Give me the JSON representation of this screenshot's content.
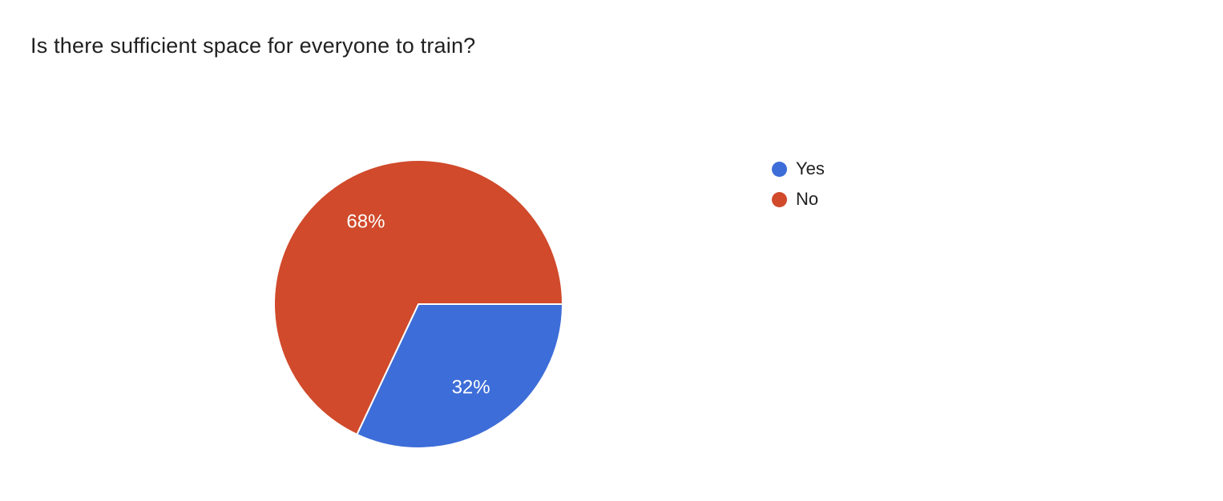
{
  "title": "Is there sufficient space for everyone to train?",
  "chart_data": {
    "type": "pie",
    "title": "Is there sufficient space for everyone to train?",
    "categories": [
      "Yes",
      "No"
    ],
    "values": [
      32,
      68
    ],
    "labels": [
      "32%",
      "68%"
    ],
    "colors": [
      "#3d6dd8",
      "#d04a2b"
    ],
    "label_color": "#ffffff",
    "slice_border_color": "#ffffff",
    "start_angle_deg": 0,
    "direction": "clockwise",
    "legend_position": "right"
  },
  "legend": {
    "items": [
      {
        "label": "Yes",
        "color": "#3d6dd8"
      },
      {
        "label": "No",
        "color": "#d04a2b"
      }
    ]
  }
}
